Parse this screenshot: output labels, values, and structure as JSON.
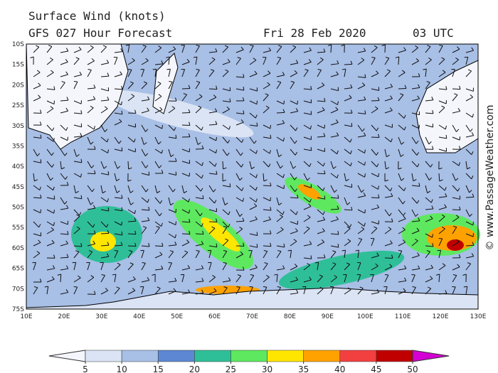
{
  "header": {
    "title": "Surface Wind (knots)",
    "model": "GFS 027 Hour Forecast",
    "date": "Fri 28 Feb 2020",
    "time": "03 UTC"
  },
  "map": {
    "lat_labels": [
      "10S",
      "15S",
      "20S",
      "25S",
      "30S",
      "35S",
      "40S",
      "45S",
      "50S",
      "55S",
      "60S",
      "65S",
      "70S",
      "75S"
    ],
    "lon_labels": [
      "10E",
      "20E",
      "30E",
      "40E",
      "50E",
      "60E",
      "70E",
      "80E",
      "90E",
      "100E",
      "110E",
      "120E",
      "130E"
    ]
  },
  "colorbar": {
    "ticks": [
      5,
      10,
      15,
      20,
      25,
      30,
      35,
      40,
      45,
      50
    ],
    "colors": [
      "#f4f6fc",
      "#dbe4f4",
      "#a8bfe6",
      "#5d87d2",
      "#2fbf98",
      "#5ee860",
      "#ffe600",
      "#ffa200",
      "#f24040",
      "#c00000",
      "#d400d4"
    ]
  },
  "credit": "© www.PassageWeather.com"
}
